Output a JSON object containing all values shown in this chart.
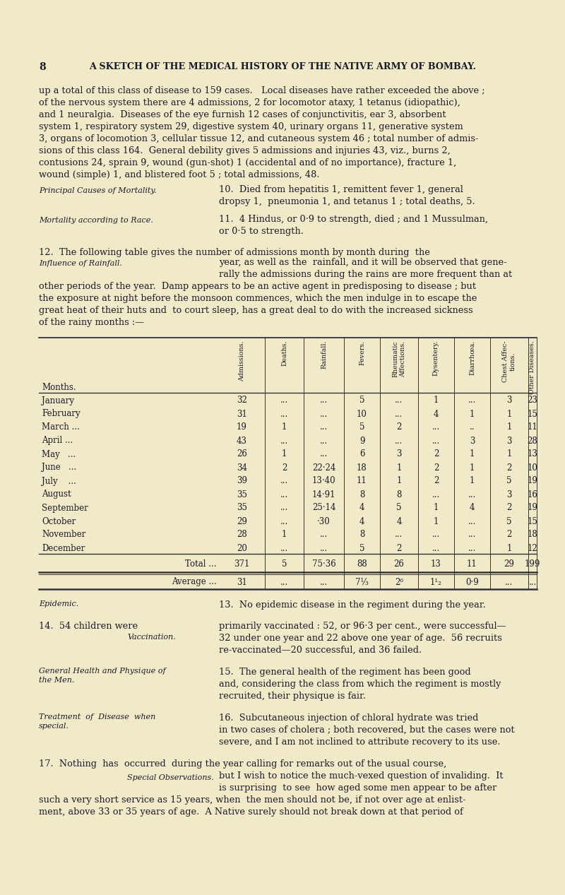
{
  "bg_color": "#f0eac8",
  "page_num": "8",
  "header": "A SKETCH OF THE MEDICAL HISTORY OF THE NATIVE ARMY OF BOMBAY.",
  "body_lines": [
    "up a total of this class of disease to 159 cases.   Local diseases have rather exceeded the above ;",
    "of the nervous system there are 4 admissions, 2 for locomotor ataxy, 1 tetanus (idiopathic),",
    "and 1 neuralgia.  Diseases of the eye furnish 12 cases of conjunctivitis, ear 3, absorbent",
    "system 1, respiratory system 29, digestive system 40, urinary organs 11, generative system",
    "3, organs of locomotion 3, cellular tissue 12, and cutaneous system 46 ; total number of admis-",
    "sions of this class 164.  General debility gives 5 admissions and injuries 43, viz., burns 2,",
    "contusions 24, sprain 9, wound (gun-shot) 1 (accidental and of no importance), fracture 1,",
    "wound (simple) 1, and blistered foot 5 ; total admissions, 48."
  ],
  "mort_label": "Principal Causes of Mortality.",
  "mort_text1": "10.  Died from hepatitis 1, remittent fever 1, general",
  "mort_text2": "dropsy 1,  pneumonia 1, and tetanus 1 ; total deaths, 5.",
  "race_label": "Mortality according to Race.",
  "race_text1": "11.  4 Hindus, or 0·9 to strength, died ; and 1 Mussulman,",
  "race_text2": "or 0·5 to strength.",
  "para12_line1": "12.  The following table gives the number of admissions month by month during  the",
  "rain_label": "Influence of Rainfall.",
  "para12_line2": "year, as well as the  rainfall, and it will be observed that gene-",
  "para12_line3": "rally the admissions during the rains are more frequent than at",
  "para12_line4": "other periods of the year.  Damp appears to be an active agent in predisposing to disease ; but",
  "para12_line5": "the exposure at night before the monsoon commences, which the men indulge in to escape the",
  "para12_line6": "great heat of their huts and  to court sleep, has a great deal to do with the increased sickness",
  "para12_line7": "of the rainy months :—",
  "col_headers": [
    "Admissions.",
    "Deaths.",
    "Rainfall.",
    "Fevers.",
    "Rheumatic\nAffections.",
    "Dysentery.",
    "Diarrhœa.",
    "Chest Affec-\ntions.",
    "Other Diseases."
  ],
  "month_label": "Months.",
  "rows": [
    [
      "January",
      "32",
      "...",
      "...",
      "5",
      "...",
      "1",
      "...",
      "3",
      "23"
    ],
    [
      "February",
      "31",
      "...",
      "...",
      "10",
      "...",
      "4",
      "1",
      "1",
      "15"
    ],
    [
      "March ...",
      "19",
      "1",
      "...",
      "5",
      "2",
      "...",
      "..",
      "1",
      "11"
    ],
    [
      "April ...",
      "43",
      "...",
      "...",
      "9",
      "...",
      "...",
      "3",
      "3",
      "28"
    ],
    [
      "May   ...",
      "26",
      "1",
      "...",
      "6",
      "3",
      "2",
      "1",
      "1",
      "13"
    ],
    [
      "June   ...",
      "34",
      "2",
      "22·24",
      "18",
      "1",
      "2",
      "1",
      "2",
      "10"
    ],
    [
      "July    ...",
      "39",
      "...",
      "13·40",
      "11",
      "1",
      "2",
      "1",
      "5",
      "19"
    ],
    [
      "August",
      "35",
      "...",
      "14·91",
      "8",
      "8",
      "...",
      "...",
      "3",
      "16"
    ],
    [
      "September",
      "35",
      "...",
      "25·14",
      "4",
      "5",
      "1",
      "4",
      "2",
      "19"
    ],
    [
      "October",
      "29",
      "...",
      "·30",
      "4",
      "4",
      "1",
      "...",
      "5",
      "15"
    ],
    [
      "November",
      "28",
      "1",
      "...",
      "8",
      "...",
      "...",
      "...",
      "2",
      "18"
    ],
    [
      "December",
      "20",
      "...",
      "...",
      "5",
      "2",
      "...",
      "...",
      "1",
      "12"
    ]
  ],
  "total_row": [
    "Total ...",
    "371",
    "5",
    "75·36",
    "88",
    "26",
    "13",
    "11",
    "29",
    "199"
  ],
  "average_row": [
    "Average ...",
    "31",
    "...",
    "...",
    "7⅟₃",
    "2⁶",
    "1¹₂",
    "0·9",
    "...",
    "..."
  ],
  "para13_label": "Epidemic.",
  "para13_text": "13.  No epidemic disease in the regiment during the year.",
  "p14_intro": "14.  54 children were",
  "vacc_label": "Vaccination.",
  "p14_lines": [
    "primarily vaccinated : 52, or 96·3 per cent., were successful—",
    "32 under one year and 22 above one year of age.  56 recruits",
    "re-vaccinated—20 successful, and 36 failed."
  ],
  "p15_side": [
    "General Health and Physique of",
    "the Men."
  ],
  "p15_lines": [
    "15.  The general health of the regiment has been good",
    "and, considering the class from which the regiment is mostly",
    "recruited, their physique is fair."
  ],
  "p16_side": [
    "Treatment  of  Disease  when",
    "special."
  ],
  "p16_lines": [
    "16.  Subcutaneous injection of chloral hydrate was tried",
    "in two cases of cholera ; both recovered, but the cases were not",
    "severe, and I am not inclined to attribute recovery to its use."
  ],
  "p17_intro": "17.  Nothing  has  occurred  during the year calling for remarks out of the usual course,",
  "p17_side": "Special Observations.",
  "p17_lines": [
    "but I wish to notice the much-vexed question of invaliding.  It",
    "is surprising  to see  how aged some men appear to be after",
    "such a very short service as 15 years, when  the men should not be, if not over age at enlist-",
    "ment, above 33 or 35 years of age.  A Native surely should not break down at that period of"
  ]
}
